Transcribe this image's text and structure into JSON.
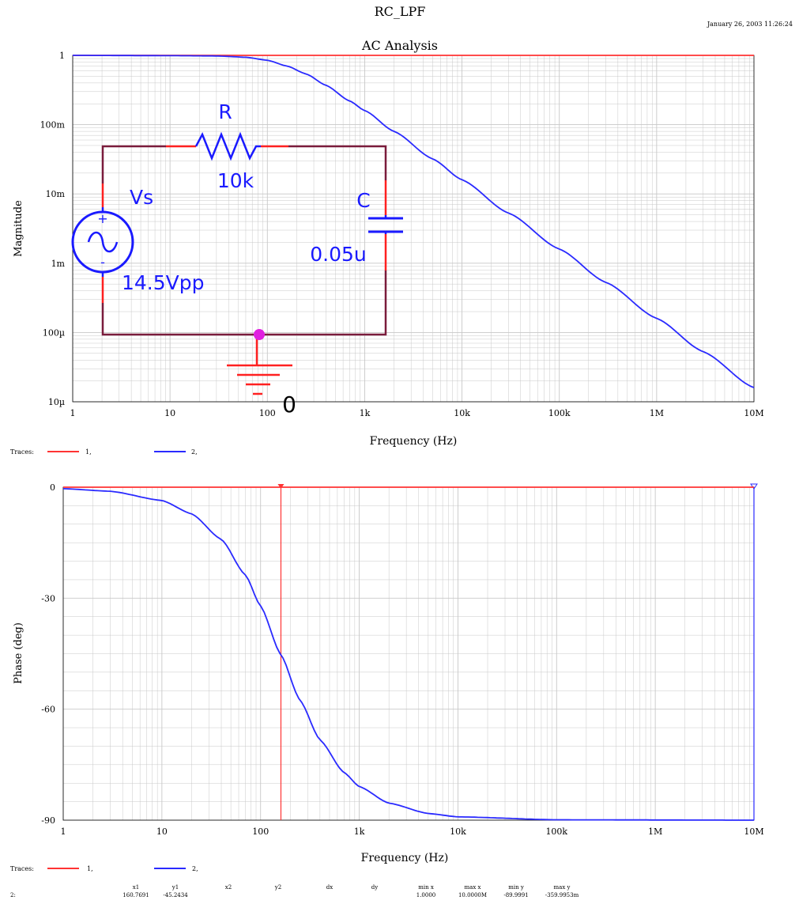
{
  "header": {
    "title": "RC_LPF",
    "subtitle": "AC Analysis",
    "timestamp": "January 26, 2003 11:26:24"
  },
  "colors": {
    "trace1": "#ff3333",
    "trace2": "#2a2aff",
    "grid": "#c8c8c8",
    "wire": "#7a1c3c",
    "component": "#1a1aff",
    "ground": "#ff2020",
    "node": "#e020e0"
  },
  "traces_legend": {
    "label": "Traces:",
    "items": [
      {
        "label": "1,",
        "color": "#ff3333"
      },
      {
        "label": "2,",
        "color": "#2a2aff"
      }
    ]
  },
  "schematic": {
    "resistor_name": "R",
    "resistor_value": "10k",
    "capacitor_name": "C",
    "capacitor_value": "0.05u",
    "source_name": "Vs",
    "source_value": "14.5Vpp",
    "ground_label": "0",
    "plus_sign": "+",
    "minus_sign": "-"
  },
  "cursor_readout": {
    "row_label": "2:",
    "headers": [
      "x1",
      "y1",
      "x2",
      "y2",
      "dx",
      "dy",
      "min x",
      "max x",
      "min y",
      "max y"
    ],
    "values": [
      "160.7691",
      "-45.2434",
      "",
      "",
      "",
      "",
      "1.0000",
      "10.0000M",
      "-89.9991",
      "-359.9953m"
    ]
  },
  "chart_data": [
    {
      "type": "line",
      "title": "AC Analysis",
      "xlabel": "Frequency (Hz)",
      "ylabel": "Magnitude",
      "x_scale": "log",
      "y_scale": "log",
      "xlim": [
        1,
        10000000
      ],
      "ylim": [
        1e-05,
        1
      ],
      "x_ticks": [
        1,
        10,
        100,
        1000,
        10000,
        100000,
        1000000,
        10000000
      ],
      "x_tick_labels": [
        "1",
        "10",
        "100",
        "1k",
        "10k",
        "100k",
        "1M",
        "10M"
      ],
      "y_ticks": [
        1e-05,
        0.0001,
        0.001,
        0.01,
        0.1,
        1
      ],
      "y_tick_labels": [
        "10µ",
        "100µ",
        "1m",
        "10m",
        "100m",
        "1"
      ],
      "grid": true,
      "series": [
        {
          "name": "1",
          "color": "#ff3333",
          "x": [
            1,
            10000000
          ],
          "y": [
            1,
            1
          ]
        },
        {
          "name": "2",
          "color": "#2a2aff",
          "x": [
            1,
            10,
            30,
            60,
            100,
            160,
            250,
            400,
            700,
            1000,
            2000,
            5000,
            10000,
            30000,
            100000,
            300000,
            1000000,
            3000000,
            10000000
          ],
          "y": [
            1,
            0.99,
            0.98,
            0.94,
            0.85,
            0.7,
            0.54,
            0.37,
            0.22,
            0.16,
            0.08,
            0.032,
            0.016,
            0.0053,
            0.0016,
            0.00053,
            0.00016,
            5.3e-05,
            1.6e-05
          ]
        }
      ]
    },
    {
      "type": "line",
      "title": "",
      "xlabel": "Frequency (Hz)",
      "ylabel": "Phase (deg)",
      "x_scale": "log",
      "y_scale": "linear",
      "xlim": [
        1,
        10000000
      ],
      "ylim": [
        -90,
        0
      ],
      "x_ticks": [
        1,
        10,
        100,
        1000,
        10000,
        100000,
        1000000,
        10000000
      ],
      "x_tick_labels": [
        "1",
        "10",
        "100",
        "1k",
        "10k",
        "100k",
        "1M",
        "10M"
      ],
      "y_ticks": [
        0,
        -30,
        -60,
        -90
      ],
      "y_tick_labels": [
        "0",
        "-30",
        "-60",
        "-90"
      ],
      "grid": true,
      "cursor_x": 160.7691,
      "series": [
        {
          "name": "1",
          "color": "#ff3333",
          "x": [
            1,
            10000000
          ],
          "y": [
            0,
            0
          ]
        },
        {
          "name": "2",
          "color": "#2a2aff",
          "x": [
            1,
            3,
            10,
            20,
            40,
            70,
            100,
            160,
            250,
            400,
            700,
            1000,
            2000,
            5000,
            10000,
            100000,
            10000000
          ],
          "y": [
            -0.4,
            -1.1,
            -3.6,
            -7.2,
            -14.1,
            -23.7,
            -32.1,
            -45.2,
            -57.5,
            -68.3,
            -77.1,
            -80.9,
            -85.4,
            -88.2,
            -89.1,
            -89.9,
            -90
          ]
        }
      ]
    }
  ]
}
